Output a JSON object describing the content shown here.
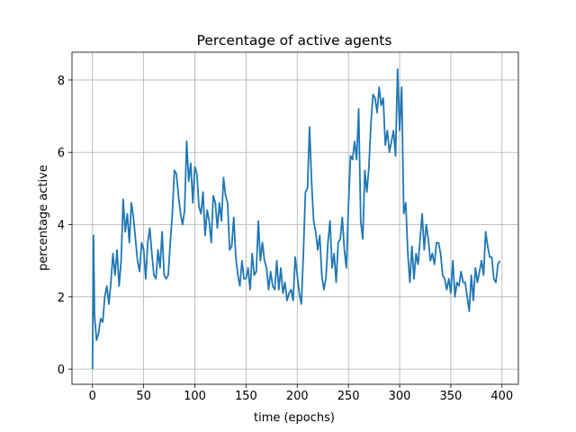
{
  "chart_data": {
    "type": "line",
    "title": "Percentage of active agents",
    "x_label": "time (epochs)",
    "y_label": "percentage active",
    "x": [
      0,
      1,
      2,
      4,
      6,
      8,
      10,
      12,
      14,
      16,
      18,
      20,
      22,
      24,
      26,
      28,
      30,
      32,
      34,
      36,
      38,
      40,
      42,
      44,
      46,
      48,
      50,
      52,
      54,
      56,
      58,
      60,
      62,
      64,
      66,
      68,
      70,
      72,
      74,
      76,
      78,
      80,
      82,
      84,
      86,
      88,
      90,
      92,
      94,
      96,
      98,
      100,
      102,
      104,
      106,
      108,
      110,
      112,
      114,
      116,
      118,
      120,
      122,
      124,
      126,
      128,
      130,
      132,
      134,
      136,
      138,
      140,
      142,
      144,
      146,
      148,
      150,
      152,
      154,
      156,
      158,
      160,
      162,
      164,
      166,
      168,
      170,
      172,
      174,
      176,
      178,
      180,
      182,
      184,
      186,
      188,
      190,
      192,
      194,
      196,
      198,
      200,
      202,
      204,
      206,
      208,
      210,
      212,
      214,
      216,
      218,
      220,
      222,
      224,
      226,
      228,
      230,
      232,
      234,
      236,
      238,
      240,
      242,
      244,
      246,
      248,
      250,
      252,
      254,
      256,
      258,
      260,
      262,
      264,
      266,
      268,
      270,
      272,
      274,
      276,
      278,
      280,
      282,
      284,
      286,
      288,
      290,
      292,
      294,
      296,
      298,
      300,
      302,
      304,
      306,
      308,
      310,
      312,
      314,
      316,
      318,
      320,
      322,
      324,
      326,
      328,
      330,
      332,
      334,
      336,
      338,
      340,
      342,
      344,
      346,
      348,
      350,
      352,
      354,
      356,
      358,
      360,
      362,
      364,
      366,
      368,
      370,
      372,
      374,
      376,
      378,
      380,
      382,
      384,
      386,
      388,
      390,
      392,
      394,
      396,
      398
    ],
    "values": [
      0,
      3.7,
      1.5,
      0.8,
      1.0,
      1.4,
      1.3,
      2.0,
      2.3,
      1.8,
      2.4,
      3.2,
      2.6,
      3.3,
      2.3,
      3.0,
      4.7,
      3.8,
      4.3,
      3.5,
      4.6,
      4.2,
      3.6,
      3.0,
      2.7,
      3.5,
      3.3,
      2.5,
      3.5,
      3.9,
      3.2,
      2.6,
      2.5,
      3.3,
      2.8,
      3.8,
      2.6,
      2.5,
      2.6,
      3.5,
      4.3,
      5.5,
      5.4,
      4.8,
      4.3,
      4.0,
      4.4,
      6.3,
      5.2,
      5.7,
      4.6,
      5.6,
      5.4,
      4.5,
      4.3,
      4.9,
      3.7,
      4.4,
      4.1,
      3.5,
      4.8,
      4.6,
      3.9,
      4.6,
      4.1,
      5.3,
      4.8,
      4.6,
      3.3,
      3.4,
      4.2,
      3.1,
      2.6,
      2.3,
      3.0,
      2.5,
      2.5,
      2.8,
      2.2,
      3.2,
      2.6,
      2.7,
      4.1,
      3.0,
      3.5,
      3.0,
      2.8,
      2.2,
      2.7,
      2.3,
      2.2,
      3.0,
      2.2,
      2.8,
      2.1,
      2.4,
      1.9,
      2.1,
      2.2,
      1.9,
      3.1,
      2.6,
      2.1,
      1.8,
      3.2,
      4.9,
      5.0,
      6.7,
      5.2,
      4.1,
      3.8,
      3.3,
      3.7,
      2.6,
      2.2,
      2.5,
      3.5,
      4.1,
      2.8,
      3.2,
      2.4,
      3.5,
      3.6,
      4.2,
      3.3,
      2.8,
      4.5,
      5.9,
      5.8,
      6.3,
      5.8,
      7.2,
      4.1,
      3.6,
      5.5,
      4.9,
      5.6,
      6.8,
      7.6,
      7.5,
      7.1,
      7.8,
      7.3,
      7.5,
      6.2,
      6.6,
      6.0,
      6.3,
      6.6,
      5.9,
      8.3,
      6.6,
      7.8,
      4.3,
      4.6,
      3.2,
      2.4,
      3.4,
      2.5,
      3.2,
      2.9,
      3.6,
      4.3,
      3.3,
      4.0,
      3.6,
      3.0,
      3.2,
      2.9,
      3.5,
      3.5,
      3.2,
      2.6,
      2.5,
      2.2,
      2.5,
      2.1,
      3.0,
      2.0,
      2.4,
      2.3,
      2.7,
      2.4,
      2.4,
      2.0,
      1.6,
      2.6,
      1.9,
      2.8,
      2.4,
      2.7,
      3.0,
      2.6,
      3.8,
      3.4,
      3.1,
      3.1,
      2.5,
      2.4,
      2.9,
      3.0
    ],
    "color": "#1f77b4",
    "xlim": [
      -20,
      416
    ],
    "ylim": [
      -0.42,
      8.77
    ],
    "xticks": [
      0,
      50,
      100,
      150,
      200,
      250,
      300,
      350,
      400
    ],
    "yticks": [
      0,
      2,
      4,
      6,
      8
    ],
    "grid": true
  }
}
